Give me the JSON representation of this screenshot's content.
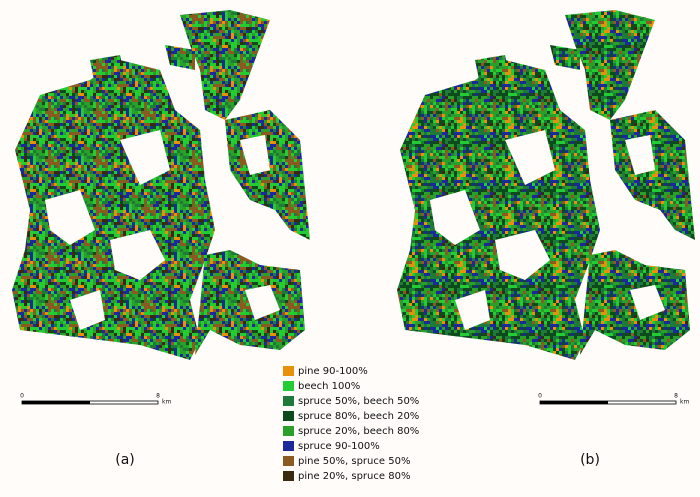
{
  "legend": {
    "items": [
      {
        "label": "pine 90-100%",
        "color": "#e8900a"
      },
      {
        "label": "beech 100%",
        "color": "#22cc33"
      },
      {
        "label": "spruce 50%, beech 50%",
        "color": "#1f7a3a"
      },
      {
        "label": "spruce 80%, beech 20%",
        "color": "#0d4a1e"
      },
      {
        "label": "spruce 20%, beech 80%",
        "color": "#2aa02a"
      },
      {
        "label": "spruce 90-100%",
        "color": "#1a2a9a"
      },
      {
        "label": "pine 50%, spruce 50%",
        "color": "#8a5a20"
      },
      {
        "label": "pine 20%, spruce 80%",
        "color": "#3a2a10"
      }
    ]
  },
  "panels": [
    {
      "label": "(a)",
      "scale": {
        "start": "0",
        "end": "8",
        "unit": "km"
      }
    },
    {
      "label": "(b)",
      "scale": {
        "start": "0",
        "end": "8",
        "unit": "km"
      }
    }
  ]
}
